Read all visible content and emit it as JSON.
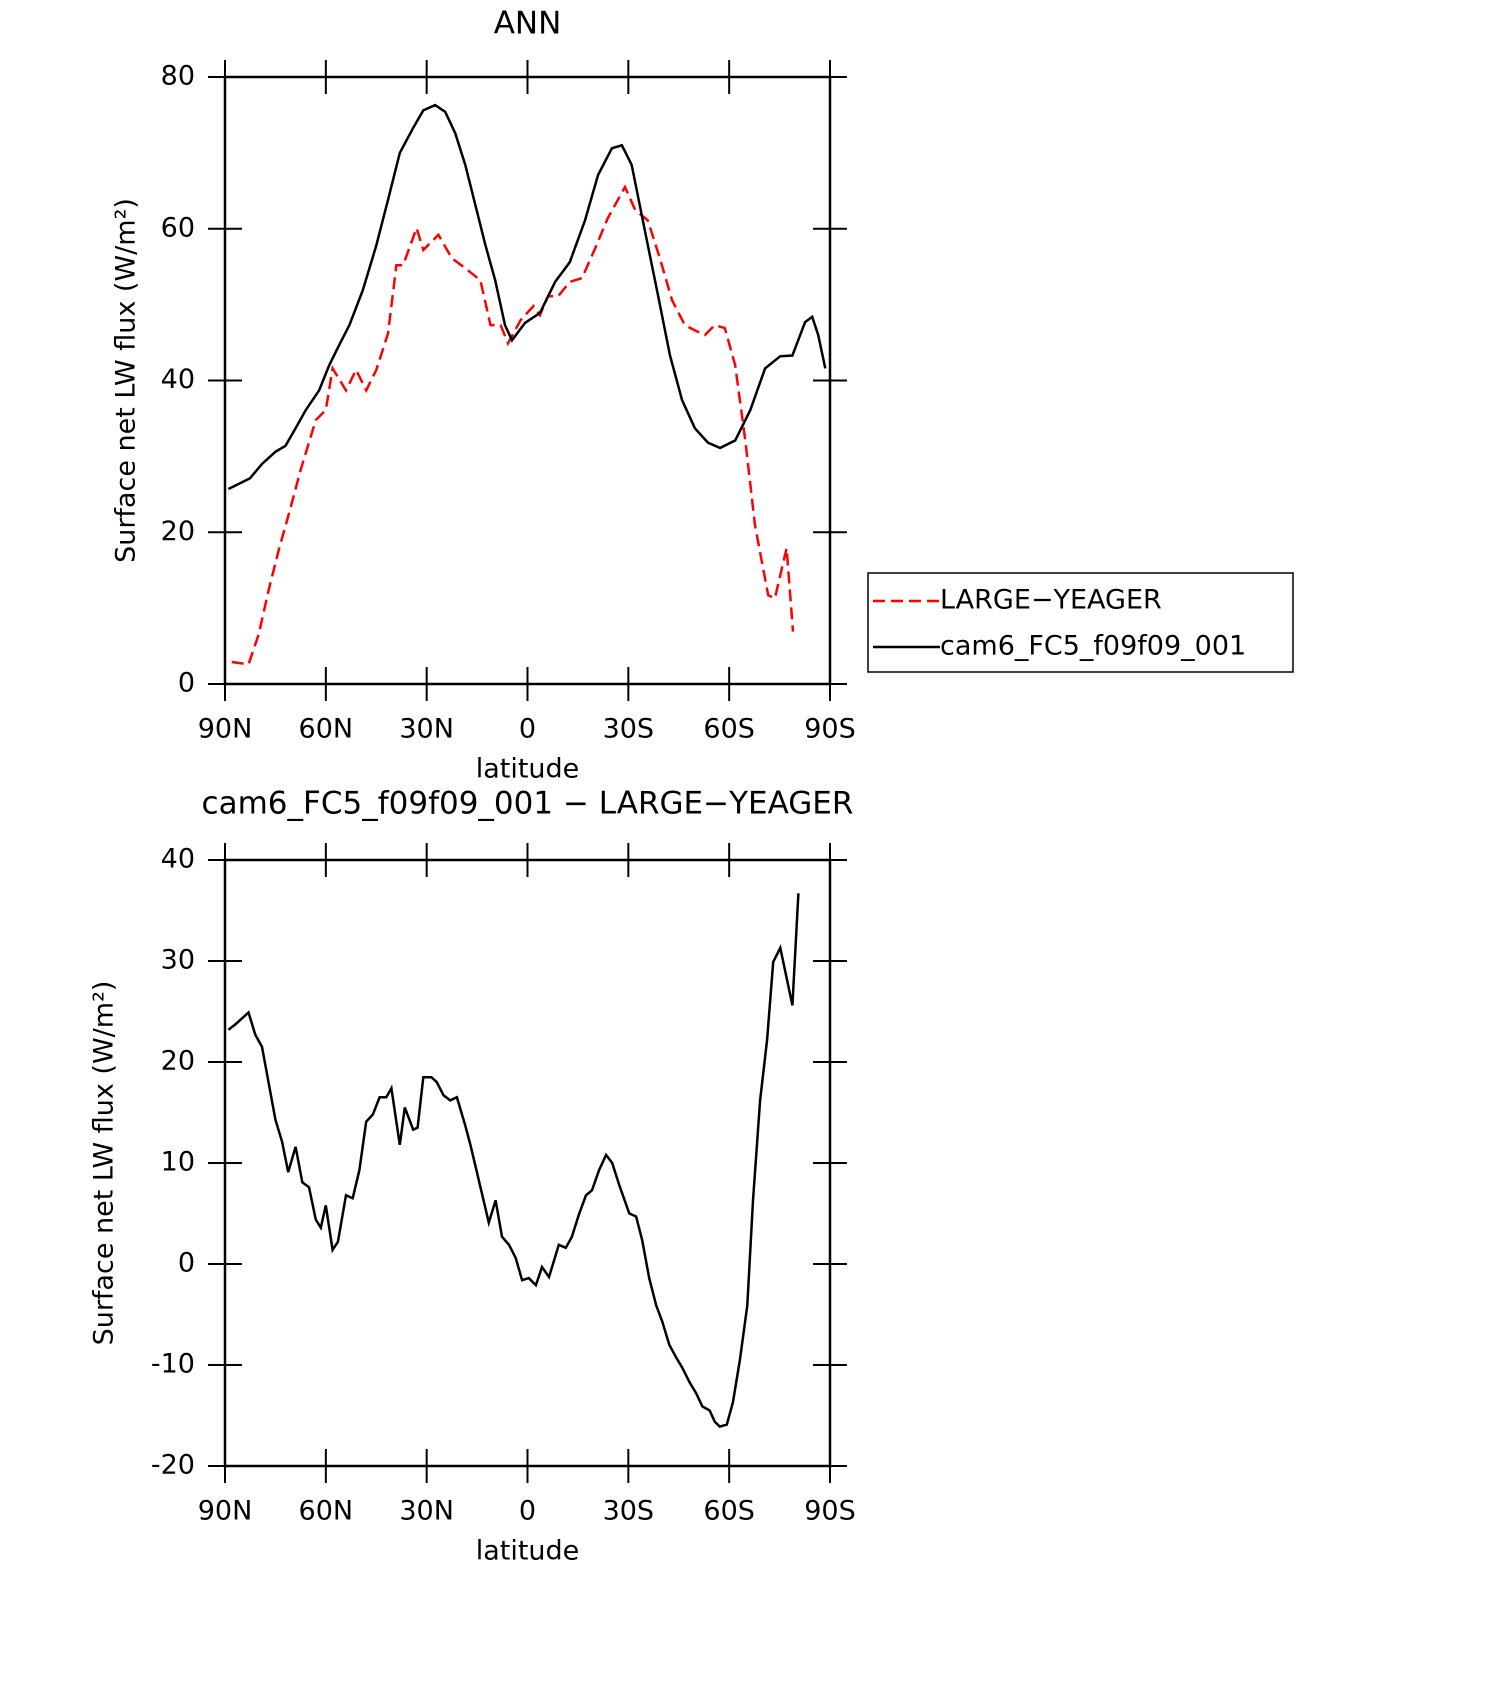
{
  "chart_data": [
    {
      "type": "line",
      "title": "ANN",
      "xlabel": "latitude",
      "ylabel": "Surface net LW flux (W/m²)",
      "xlim": [
        90,
        -90
      ],
      "ylim": [
        0,
        80
      ],
      "xticks": [
        {
          "value": 90,
          "label": "90N"
        },
        {
          "value": 60,
          "label": "60N"
        },
        {
          "value": 30,
          "label": "30N"
        },
        0,
        {
          "value": -30,
          "label": "30S"
        },
        {
          "value": -60,
          "label": "60S"
        },
        {
          "value": -90,
          "label": "90S"
        }
      ],
      "yticks": [
        0,
        20,
        40,
        60,
        80
      ],
      "legend": "right",
      "series": [
        {
          "name": "LARGE−YEAGER",
          "color": "#ff0000",
          "dash": "dashed",
          "x": [
            88,
            83,
            80,
            77,
            74,
            70.5,
            67.5,
            63,
            60,
            58,
            54,
            51,
            48,
            45,
            41.5,
            39,
            37,
            33,
            31,
            26.5,
            22.5,
            18.5,
            14,
            11,
            8,
            5.8,
            2,
            -1.8,
            -3.7,
            -6.1,
            -9.1,
            -12.6,
            -16.2,
            -20.1,
            -23.9,
            -29,
            -32,
            -35.8,
            -39.4,
            -43,
            -46.8,
            -49.8,
            -52.8,
            -55.7,
            -58.7,
            -61.8,
            -64.8,
            -67.7,
            -71.6,
            -73.6,
            -77.1,
            -79
          ],
          "values": [
            2.9,
            2.6,
            6.5,
            12.4,
            17.7,
            23.2,
            28.2,
            34.8,
            36.1,
            41.6,
            38.7,
            41.4,
            38.7,
            41.4,
            46.2,
            55.2,
            55.2,
            60.1,
            57.2,
            59.2,
            56.1,
            54.8,
            53.2,
            47.3,
            47.3,
            44.9,
            48,
            49.8,
            48.6,
            51.1,
            51.1,
            53,
            53.5,
            57.4,
            61.4,
            65.5,
            62.5,
            61.1,
            56.1,
            50.6,
            47.3,
            46.6,
            46,
            47.3,
            46.9,
            42,
            32.1,
            20.9,
            11.7,
            11.3,
            17.9,
            6.9
          ]
        },
        {
          "name": "cam6_FC5_f09f09_001",
          "color": "#000000",
          "dash": "solid",
          "x": [
            89,
            82.6,
            79,
            75,
            72,
            69,
            66,
            62,
            59,
            56,
            53,
            49,
            45,
            41.5,
            38,
            34,
            31,
            27.5,
            24.5,
            21.5,
            18.5,
            15.5,
            12.5,
            9.6,
            6.7,
            4.6,
            0.7,
            -3.7,
            -8.2,
            -12.6,
            -17.1,
            -21,
            -25.1,
            -28.1,
            -31,
            -34.9,
            -38.8,
            -42.4,
            -46,
            -49.8,
            -53.7,
            -57.3,
            -61.8,
            -66.3,
            -70.7,
            -75.2,
            -78.8,
            -82.6,
            -84.7,
            -86.5,
            -88.6
          ],
          "values": [
            25.7,
            27.1,
            29,
            30.6,
            31.4,
            33.7,
            36.1,
            38.7,
            42,
            44.7,
            47.3,
            51.9,
            57.8,
            63.8,
            70,
            73.3,
            75.6,
            76.3,
            75.4,
            72.6,
            68.4,
            63.1,
            57.8,
            53.2,
            47.3,
            45.3,
            47.6,
            48.9,
            53,
            55.6,
            61.1,
            67.1,
            70.6,
            71,
            68.4,
            59.8,
            51.3,
            43.3,
            37.4,
            33.7,
            31.8,
            31.1,
            32.1,
            36.1,
            41.6,
            43.2,
            43.3,
            47.7,
            48.4,
            46,
            41.6
          ]
        }
      ]
    },
    {
      "type": "line",
      "title": "cam6_FC5_f09f09_001 − LARGE−YEAGER",
      "xlabel": "latitude",
      "ylabel": "Surface net LW flux (W/m²)",
      "xlim": [
        90,
        -90
      ],
      "ylim": [
        -20,
        40
      ],
      "xticks": [
        {
          "value": 90,
          "label": "90N"
        },
        {
          "value": 60,
          "label": "60N"
        },
        {
          "value": 30,
          "label": "30N"
        },
        0,
        {
          "value": -30,
          "label": "30S"
        },
        {
          "value": -60,
          "label": "60S"
        },
        {
          "value": -90,
          "label": "90S"
        }
      ],
      "yticks": [
        -20,
        -10,
        0,
        10,
        20,
        30,
        40
      ],
      "color": "#000000",
      "x": [
        89,
        87,
        83,
        81,
        79,
        75,
        73,
        71.2,
        69,
        67,
        65,
        63,
        61.5,
        60,
        58,
        56.4,
        54,
        52,
        50,
        48,
        46,
        44,
        42,
        40.5,
        38,
        36.5,
        34,
        32.7,
        31,
        28.6,
        27,
        25,
        23,
        21,
        18.6,
        17,
        14.5,
        11.5,
        9.5,
        7.6,
        5.5,
        3.5,
        1.6,
        -0.4,
        -2.5,
        -4.3,
        -6.4,
        -9.3,
        -11.4,
        -13.2,
        -15.3,
        -17.4,
        -19.2,
        -21.3,
        -23.4,
        -25.2,
        -27.3,
        -30.3,
        -32.3,
        -34.1,
        -36.2,
        -38.3,
        -40.1,
        -42.2,
        -44.3,
        -46.1,
        -48.2,
        -50.2,
        -52,
        -54.2,
        -55.7,
        -57.2,
        -59.3,
        -61.1,
        -63.2,
        -65.4,
        -67.1,
        -69.2,
        -71.3,
        -73.1,
        -75.2,
        -78.8,
        -80.6
      ],
      "values": [
        23.2,
        23.7,
        24.9,
        22.7,
        21.5,
        14.3,
        12.1,
        9.1,
        11.6,
        8.1,
        7.6,
        4.4,
        3.6,
        5.8,
        1.4,
        2.2,
        6.8,
        6.5,
        9.3,
        14.1,
        14.8,
        16.5,
        16.5,
        17.4,
        11.8,
        15.5,
        13.3,
        13.5,
        18.5,
        18.5,
        18,
        16.7,
        16.2,
        16.5,
        13.8,
        11.8,
        8.3,
        4.1,
        6.3,
        2.7,
        1.9,
        0.6,
        -1.6,
        -1.4,
        -2.1,
        -0.3,
        -1.3,
        1.9,
        1.6,
        2.7,
        4.9,
        6.8,
        7.3,
        9.3,
        10.8,
        10,
        7.8,
        5,
        4.7,
        2.4,
        -1.4,
        -4.1,
        -5.7,
        -8,
        -9.3,
        -10.3,
        -11.7,
        -12.8,
        -14.1,
        -14.5,
        -15.6,
        -16.1,
        -15.9,
        -13.7,
        -9.5,
        -4.1,
        6.3,
        16.2,
        22.2,
        29.9,
        31.3,
        25.6,
        36.7
      ]
    }
  ]
}
